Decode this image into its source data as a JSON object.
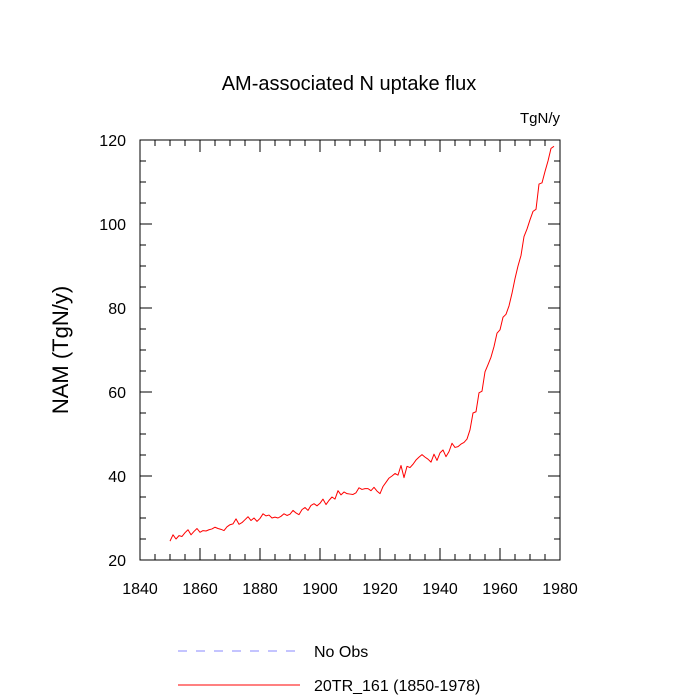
{
  "chart_data": {
    "type": "line",
    "title": "AM-associated N uptake flux",
    "units_label": "TgN/y",
    "ylabel": "NAM  (TgN/y)",
    "xlabel": "",
    "xlim": [
      1840,
      1980
    ],
    "ylim": [
      20,
      120
    ],
    "xticks": [
      1840,
      1860,
      1880,
      1900,
      1920,
      1940,
      1960,
      1980
    ],
    "yticks": [
      20,
      40,
      60,
      80,
      100,
      120
    ],
    "grid": false,
    "legend_position": "bottom",
    "legend": [
      {
        "label": "No Obs",
        "color": "#8888ff",
        "style": "dashed"
      },
      {
        "label": "20TR_161 (1850-1978)",
        "color": "#ff0000",
        "style": "solid"
      }
    ],
    "series": [
      {
        "name": "20TR_161 (1850-1978)",
        "color": "#ff0000",
        "x": [
          1850,
          1851,
          1852,
          1853,
          1854,
          1855,
          1856,
          1857,
          1858,
          1859,
          1860,
          1861,
          1862,
          1863,
          1864,
          1865,
          1866,
          1867,
          1868,
          1869,
          1870,
          1871,
          1872,
          1873,
          1874,
          1875,
          1876,
          1877,
          1878,
          1879,
          1880,
          1881,
          1882,
          1883,
          1884,
          1885,
          1886,
          1887,
          1888,
          1889,
          1890,
          1891,
          1892,
          1893,
          1894,
          1895,
          1896,
          1897,
          1898,
          1899,
          1900,
          1901,
          1902,
          1903,
          1904,
          1905,
          1906,
          1907,
          1908,
          1909,
          1910,
          1911,
          1912,
          1913,
          1914,
          1915,
          1916,
          1917,
          1918,
          1919,
          1920,
          1921,
          1922,
          1923,
          1924,
          1925,
          1926,
          1927,
          1928,
          1929,
          1930,
          1931,
          1932,
          1933,
          1934,
          1935,
          1936,
          1937,
          1938,
          1939,
          1940,
          1941,
          1942,
          1943,
          1944,
          1945,
          1946,
          1947,
          1948,
          1949,
          1950,
          1951,
          1952,
          1953,
          1954,
          1955,
          1956,
          1957,
          1958,
          1959,
          1960,
          1961,
          1962,
          1963,
          1964,
          1965,
          1966,
          1967,
          1968,
          1969,
          1970,
          1971,
          1972,
          1973,
          1974,
          1975,
          1976,
          1977,
          1978
        ],
        "values": [
          24.5,
          26.0,
          25.0,
          25.8,
          25.6,
          26.5,
          27.2,
          26.0,
          26.8,
          27.5,
          26.6,
          27.0,
          26.9,
          27.2,
          27.4,
          27.8,
          27.5,
          27.3,
          27.0,
          27.9,
          28.4,
          28.6,
          29.8,
          28.5,
          28.9,
          29.6,
          30.3,
          29.4,
          30.0,
          29.2,
          29.9,
          31.0,
          30.5,
          30.7,
          30.0,
          30.2,
          30.0,
          30.4,
          31.0,
          30.6,
          30.9,
          31.8,
          31.2,
          30.8,
          32.0,
          32.5,
          31.8,
          33.0,
          33.4,
          32.9,
          33.5,
          34.5,
          33.2,
          34.2,
          35.0,
          34.5,
          36.5,
          35.5,
          36.2,
          35.8,
          35.7,
          35.6,
          36.0,
          37.2,
          36.8,
          37.0,
          37.0,
          36.5,
          37.3,
          36.4,
          35.8,
          37.5,
          38.5,
          39.5,
          40.0,
          40.6,
          40.2,
          42.5,
          39.6,
          42.3,
          42.0,
          42.8,
          43.8,
          44.5,
          45.1,
          44.5,
          44.0,
          43.3,
          45.2,
          43.7,
          45.5,
          46.2,
          44.6,
          45.8,
          47.8,
          46.8,
          47.0,
          47.6,
          48.0,
          48.8,
          51.0,
          55.0,
          55.3,
          59.8,
          60.2,
          64.8,
          66.5,
          68.3,
          70.8,
          74.0,
          74.8,
          77.8,
          78.5,
          80.5,
          83.5,
          87.0,
          90.0,
          92.5,
          97.0,
          98.8,
          101.0,
          103.0,
          103.5,
          109.5,
          109.8,
          112.5,
          115.0,
          118.0,
          118.5
        ]
      }
    ]
  }
}
